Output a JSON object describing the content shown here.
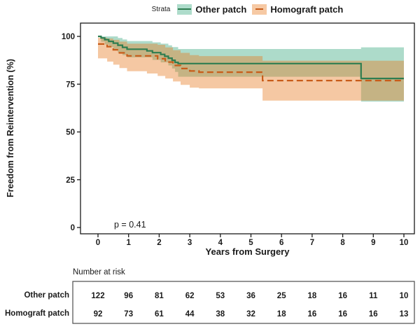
{
  "legend": {
    "title": "Strata",
    "items": [
      {
        "label": "Other patch",
        "line_color": "#2e7d50",
        "fill_color": "#aedccb",
        "dashed": false
      },
      {
        "label": "Homograft patch",
        "line_color": "#c85c19",
        "fill_color": "#f6c9a4",
        "dashed": true
      }
    ]
  },
  "annotation": {
    "p_value": "p = 0.41"
  },
  "axes": {
    "y_title": "Freedom from Reintervention (%)",
    "x_title": "Years from Surgery",
    "y_ticks": [
      0,
      25,
      50,
      75,
      100
    ],
    "x_ticks": [
      0,
      1,
      2,
      3,
      4,
      5,
      6,
      7,
      8,
      9,
      10
    ]
  },
  "risk_table": {
    "title": "Number at risk",
    "rows": [
      {
        "label": "Other patch",
        "values": [
          122,
          96,
          81,
          62,
          53,
          36,
          25,
          18,
          16,
          11,
          10
        ]
      },
      {
        "label": "Homograft patch",
        "values": [
          92,
          73,
          61,
          44,
          38,
          32,
          18,
          16,
          16,
          16,
          13
        ]
      }
    ]
  },
  "chart_data": {
    "type": "line",
    "subtype": "kaplan_meier_step",
    "title": "",
    "xlabel": "Years from Surgery",
    "ylabel": "Freedom from Reintervention (%)",
    "xlim": [
      -0.6,
      10.35
    ],
    "ylim": [
      -3.5,
      107
    ],
    "grid": false,
    "legend_position": "top",
    "p_value": "p = 0.41",
    "series": [
      {
        "name": "Other patch",
        "line_color": "#2e7d50",
        "band_color": "rgba(60,170,129,0.42)",
        "dashed": false,
        "steps": [
          [
            0,
            100
          ],
          [
            0.1,
            99.2
          ],
          [
            0.22,
            98.3
          ],
          [
            0.35,
            97.4
          ],
          [
            0.5,
            96.5
          ],
          [
            0.65,
            95.4
          ],
          [
            0.8,
            94.3
          ],
          [
            0.95,
            93.3
          ],
          [
            1.6,
            92.4
          ],
          [
            1.78,
            91.5
          ],
          [
            2.05,
            90.6
          ],
          [
            2.18,
            89.6
          ],
          [
            2.3,
            88.6
          ],
          [
            2.42,
            87.5
          ],
          [
            2.52,
            86.4
          ],
          [
            2.62,
            85.8
          ],
          [
            8.6,
            78
          ],
          [
            10,
            78
          ]
        ],
        "ci_upper": [
          [
            0,
            100
          ],
          [
            0.65,
            99.2
          ],
          [
            0.8,
            98.4
          ],
          [
            0.95,
            97.6
          ],
          [
            1.78,
            96.9
          ],
          [
            2.05,
            96.2
          ],
          [
            2.3,
            95.3
          ],
          [
            2.42,
            94.4
          ],
          [
            2.62,
            93.4
          ],
          [
            8.6,
            94.3
          ],
          [
            10,
            94.3
          ]
        ],
        "ci_lower": [
          [
            0,
            100
          ],
          [
            0.1,
            97.2
          ],
          [
            0.22,
            95.8
          ],
          [
            0.35,
            94.4
          ],
          [
            0.5,
            93
          ],
          [
            0.65,
            91.6
          ],
          [
            0.8,
            90.2
          ],
          [
            0.95,
            89
          ],
          [
            1.78,
            87.7
          ],
          [
            2.05,
            86.4
          ],
          [
            2.3,
            84.8
          ],
          [
            2.42,
            83.2
          ],
          [
            2.52,
            81.4
          ],
          [
            2.62,
            78.9
          ],
          [
            8.6,
            65.9
          ],
          [
            10,
            65.9
          ]
        ]
      },
      {
        "name": "Homograft patch",
        "line_color": "#c85c19",
        "band_color": "rgba(231,124,36,0.42)",
        "dashed": true,
        "steps": [
          [
            0,
            96
          ],
          [
            0.3,
            94.6
          ],
          [
            0.5,
            93
          ],
          [
            0.7,
            91.4
          ],
          [
            0.95,
            89.8
          ],
          [
            1.95,
            88.3
          ],
          [
            2.2,
            86.6
          ],
          [
            2.45,
            84.8
          ],
          [
            2.7,
            83.2
          ],
          [
            3.0,
            81.9
          ],
          [
            3.3,
            81.3
          ],
          [
            5.38,
            76.9
          ],
          [
            10,
            76.9
          ]
        ],
        "ci_upper": [
          [
            0,
            99.3
          ],
          [
            0.3,
            98.9
          ],
          [
            0.5,
            98.2
          ],
          [
            0.7,
            97.3
          ],
          [
            0.95,
            96.2
          ],
          [
            1.95,
            95.6
          ],
          [
            2.2,
            94.2
          ],
          [
            2.45,
            92.8
          ],
          [
            2.7,
            91.4
          ],
          [
            3.0,
            90.2
          ],
          [
            3.3,
            89.7
          ],
          [
            5.38,
            87.3
          ],
          [
            10,
            87.3
          ]
        ],
        "ci_lower": [
          [
            0,
            88.5
          ],
          [
            0.3,
            86.8
          ],
          [
            0.5,
            85.2
          ],
          [
            0.7,
            83.4
          ],
          [
            0.95,
            81.8
          ],
          [
            1.6,
            80.6
          ],
          [
            1.95,
            79.3
          ],
          [
            2.2,
            78
          ],
          [
            2.45,
            76.4
          ],
          [
            2.7,
            74.6
          ],
          [
            3.0,
            73.2
          ],
          [
            3.3,
            72.8
          ],
          [
            5.38,
            66.4
          ],
          [
            10,
            66.4
          ]
        ]
      }
    ],
    "risk_table": {
      "title": "Number at risk",
      "time_points": [
        0,
        1,
        2,
        3,
        4,
        5,
        6,
        7,
        8,
        9,
        10
      ],
      "rows": [
        {
          "label": "Other patch",
          "values": [
            122,
            96,
            81,
            62,
            53,
            36,
            25,
            18,
            16,
            11,
            10
          ]
        },
        {
          "label": "Homograft patch",
          "values": [
            92,
            73,
            61,
            44,
            38,
            32,
            18,
            16,
            16,
            16,
            13
          ]
        }
      ]
    }
  }
}
